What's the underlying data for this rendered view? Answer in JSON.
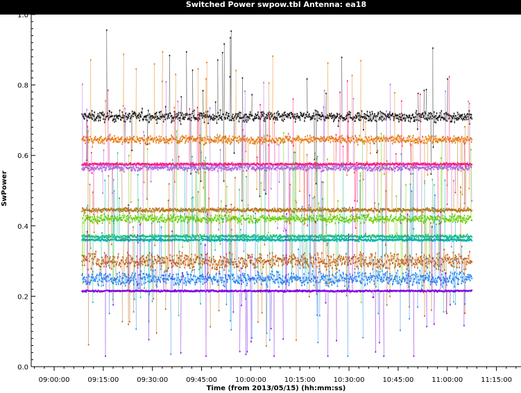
{
  "chart_data": {
    "type": "scatter",
    "title": "Switched Power  swpow.tbl   Antenna: ea18",
    "xlabel": "Time (from 2013/05/15) (hh:mm:ss)",
    "ylabel": "SwPower",
    "xlim": [
      "08:53:00",
      "11:22:30"
    ],
    "ylim": [
      0,
      1
    ],
    "x_ticks": [
      "09:00:00",
      "09:15:00",
      "09:30:00",
      "09:45:00",
      "10:00:00",
      "10:15:00",
      "10:30:00",
      "10:45:00",
      "11:00:00",
      "11:15:00"
    ],
    "y_ticks": [
      "0.0",
      "0.2",
      "0.4",
      "0.6",
      "0.8",
      "1.0"
    ],
    "grid": false,
    "x_range_of_data": [
      "09:08:30",
      "11:07:30"
    ],
    "series": [
      {
        "color": "#1a1a1a",
        "level": 0.71,
        "spread": 0.025
      },
      {
        "color": "#e87a10",
        "level": 0.645,
        "spread": 0.02
      },
      {
        "color": "#ff1480",
        "level": 0.575,
        "spread": 0.006
      },
      {
        "color": "#b060e0",
        "level": 0.565,
        "spread": 0.015
      },
      {
        "color": "#b8741a",
        "level": 0.445,
        "spread": 0.01
      },
      {
        "color": "#66d000",
        "level": 0.42,
        "spread": 0.02
      },
      {
        "color": "#20c080",
        "level": 0.37,
        "spread": 0.008
      },
      {
        "color": "#00b0b0",
        "level": 0.36,
        "spread": 0.006
      },
      {
        "color": "#c06010",
        "level": 0.3,
        "spread": 0.04
      },
      {
        "color": "#2080f0",
        "level": 0.25,
        "spread": 0.035
      },
      {
        "color": "#8000e0",
        "level": 0.215,
        "spread": 0.004
      }
    ]
  }
}
